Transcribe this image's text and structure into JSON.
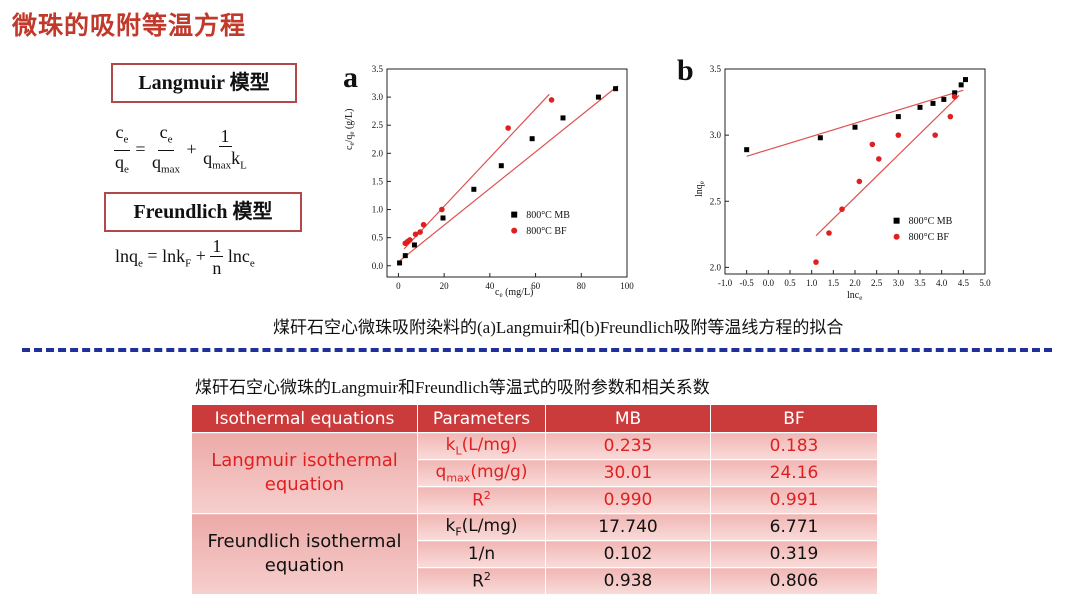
{
  "slide": {
    "title": "微珠的吸附等温方程"
  },
  "models": {
    "langmuir_label": "Langmuir 模型",
    "freundlich_label": "Freundlich 模型"
  },
  "equations": {
    "langmuir": {
      "lhs_num": "ce",
      "lhs_den": "qe",
      "eq": "=",
      "t1_num": "ce",
      "t1_den": "qmax",
      "plus": "+",
      "t2_num": "1",
      "t2_den": "qmaxkL"
    },
    "freundlich": {
      "lhs": "lnqe",
      "eq": "=",
      "t1": "lnkF",
      "plus": "+",
      "frac_num": "1",
      "frac_den": "n",
      "t2": "lnce"
    }
  },
  "figure_caption": "煤矸石空心微珠吸附染料的(a)Langmuir和(b)Freundlich吸附等温线方程的拟合",
  "table_caption": "煤矸石空心微珠的Langmuir和Freundlich等温式的吸附参数和相关系数",
  "table": {
    "headers": [
      "Isothermal equations",
      "Parameters",
      "MB",
      "BF"
    ],
    "langmuir_label": "Langmuir isothermal equation",
    "freundlich_label": "Freundlich isothermal equation",
    "langmuir_rows": [
      {
        "param": "kL(L/mg)",
        "mb": "0.235",
        "bf": "0.183"
      },
      {
        "param": "qmax(mg/g)",
        "mb": "30.01",
        "bf": "24.16"
      },
      {
        "param": "R2",
        "mb": "0.990",
        "bf": "0.991"
      }
    ],
    "freundlich_rows": [
      {
        "param": "kF(L/mg)",
        "mb": "17.740",
        "bf": "6.771"
      },
      {
        "param": "1/n",
        "mb": "0.102",
        "bf": "0.319"
      },
      {
        "param": "R2",
        "mb": "0.938",
        "bf": "0.806"
      }
    ]
  },
  "chart_data": [
    {
      "type": "scatter",
      "panel_label": "a",
      "xlabel": "ce (mg/L)",
      "ylabel": "ce/qe (g/L)",
      "xlim": [
        -5,
        100
      ],
      "ylim": [
        -0.2,
        3.5
      ],
      "xticks": [
        0,
        20,
        40,
        60,
        80,
        100
      ],
      "yticks": [
        0.0,
        0.5,
        1.0,
        1.5,
        2.0,
        2.5,
        3.0,
        3.5
      ],
      "legend_position": "lower-right",
      "series": [
        {
          "name": "800°C MB",
          "color": "#000000",
          "marker": "square",
          "points": [
            [
              0.5,
              0.05
            ],
            [
              3,
              0.18
            ],
            [
              7,
              0.37
            ],
            [
              19.5,
              0.85
            ],
            [
              33,
              1.36
            ],
            [
              45,
              1.78
            ],
            [
              58.5,
              2.26
            ],
            [
              72,
              2.63
            ],
            [
              87.5,
              3.0
            ],
            [
              95,
              3.15
            ]
          ],
          "fit": [
            [
              0,
              0.07
            ],
            [
              96,
              3.2
            ]
          ]
        },
        {
          "name": "800°C BF",
          "color": "#e02020",
          "marker": "circle",
          "points": [
            [
              3,
              0.4
            ],
            [
              4,
              0.43
            ],
            [
              5,
              0.46
            ],
            [
              7.5,
              0.56
            ],
            [
              9.5,
              0.6
            ],
            [
              11,
              0.73
            ],
            [
              19,
              1.0
            ],
            [
              48,
              2.45
            ],
            [
              67,
              2.95
            ]
          ],
          "fit": [
            [
              2.5,
              0.3
            ],
            [
              66,
              3.05
            ]
          ]
        }
      ]
    },
    {
      "type": "scatter",
      "panel_label": "b",
      "xlabel": "lnce",
      "ylabel": "lnqe",
      "xlim": [
        -1.0,
        5.0
      ],
      "ylim": [
        1.95,
        3.5
      ],
      "xticks": [
        -1.0,
        -0.5,
        0.0,
        0.5,
        1.0,
        1.5,
        2.0,
        2.5,
        3.0,
        3.5,
        4.0,
        4.5,
        5.0
      ],
      "yticks": [
        2.0,
        2.5,
        3.0,
        3.5
      ],
      "legend_position": "lower-right",
      "series": [
        {
          "name": "800°C MB",
          "color": "#000000",
          "marker": "square",
          "points": [
            [
              -0.5,
              2.89
            ],
            [
              1.2,
              2.98
            ],
            [
              2.0,
              3.06
            ],
            [
              3.0,
              3.14
            ],
            [
              3.5,
              3.21
            ],
            [
              3.8,
              3.24
            ],
            [
              4.05,
              3.27
            ],
            [
              4.3,
              3.32
            ],
            [
              4.45,
              3.38
            ],
            [
              4.55,
              3.42
            ]
          ],
          "fit": [
            [
              -0.5,
              2.84
            ],
            [
              4.5,
              3.34
            ]
          ]
        },
        {
          "name": "800°C BF",
          "color": "#e02020",
          "marker": "circle",
          "points": [
            [
              1.1,
              2.04
            ],
            [
              1.4,
              2.26
            ],
            [
              1.7,
              2.44
            ],
            [
              2.1,
              2.65
            ],
            [
              2.4,
              2.93
            ],
            [
              2.55,
              2.82
            ],
            [
              3.0,
              3.0
            ],
            [
              3.85,
              3.0
            ],
            [
              4.2,
              3.14
            ],
            [
              4.3,
              3.29
            ]
          ],
          "fit": [
            [
              1.1,
              2.24
            ],
            [
              4.4,
              3.3
            ]
          ]
        }
      ]
    }
  ]
}
